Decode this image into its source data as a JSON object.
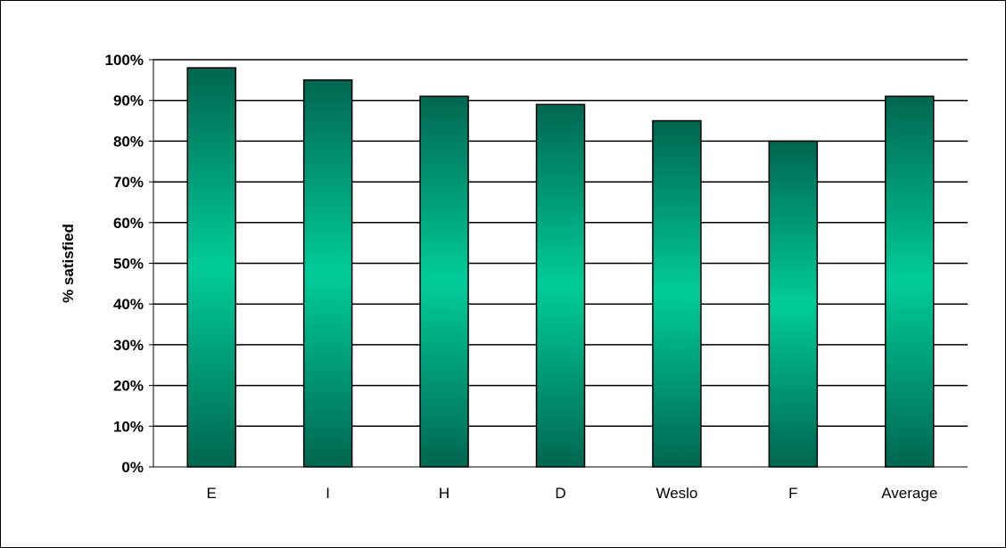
{
  "chart_data": {
    "type": "bar",
    "title": "",
    "xlabel": "",
    "ylabel": "% satisfied",
    "categories": [
      "E",
      "I",
      "H",
      "D",
      "Weslo",
      "F",
      "Average"
    ],
    "values": [
      98,
      95,
      91,
      89,
      85,
      80,
      91
    ],
    "ylim": [
      0,
      100
    ],
    "y_ticks": [
      0,
      10,
      20,
      30,
      40,
      50,
      60,
      70,
      80,
      90,
      100
    ],
    "y_tick_labels": [
      "0%",
      "10%",
      "20%",
      "30%",
      "40%",
      "50%",
      "60%",
      "70%",
      "80%",
      "90%",
      "100%"
    ],
    "grid": true,
    "legend": "none",
    "colors": {
      "bar_center": "#00CC99",
      "bar_edge": "#006650",
      "gridline": "#000000",
      "outline": "#000000"
    }
  }
}
